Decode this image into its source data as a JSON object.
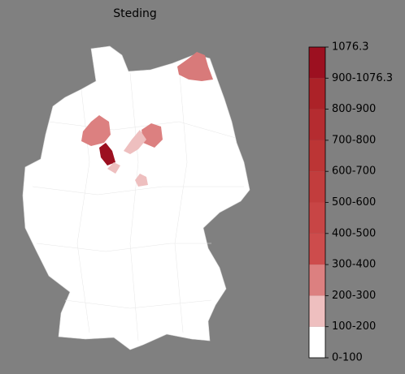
{
  "title": "Steding",
  "colorbar": {
    "labels": [
      "0-100",
      "100-200",
      "200-300",
      "300-400",
      "400-500",
      "500-600",
      "600-700",
      "700-800",
      "800-900",
      "900-1076.3",
      "1076.3"
    ],
    "colors": [
      "#ffffff",
      "#eebfbf",
      "#dc8080",
      "#cd4c4c",
      "#c84545",
      "#c23d3d",
      "#bc3535",
      "#b52c30",
      "#ac2228",
      "#9c1020"
    ]
  }
}
